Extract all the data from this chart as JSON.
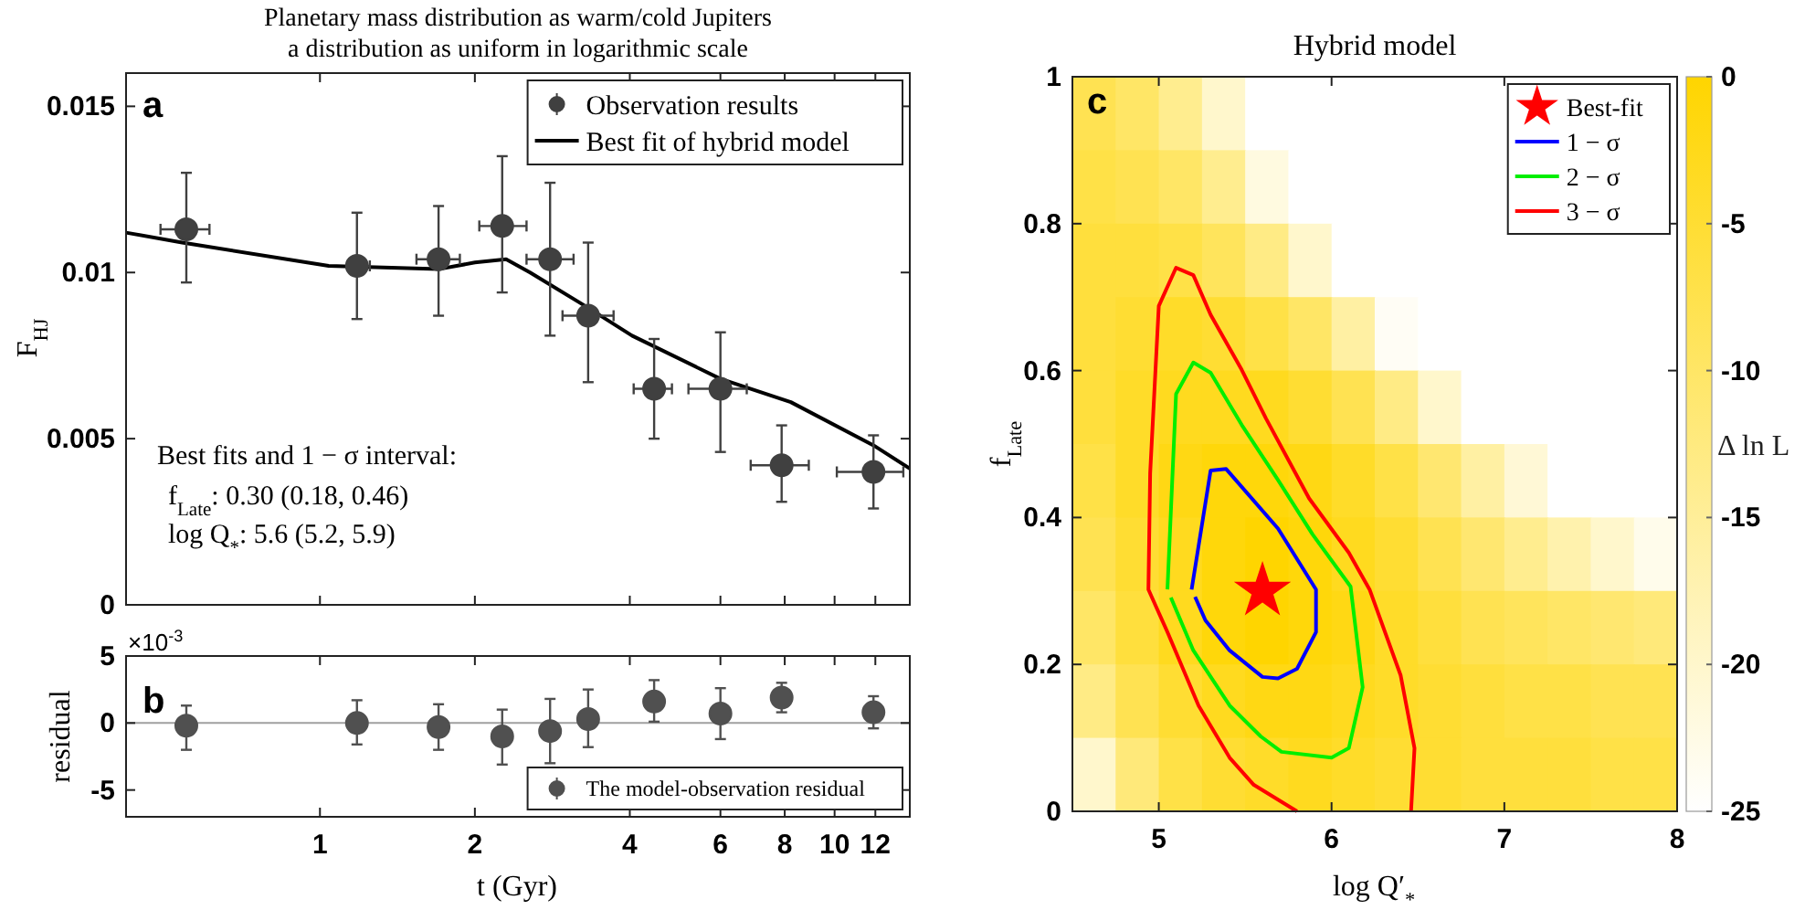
{
  "chart_data": [
    {
      "type": "scatter",
      "title": "Planetary mass distribution as warm/cold Jupiters",
      "subtitle": "a distribution as uniform in logarithmic scale",
      "ylabel": "F$_{HJ}$",
      "log": "x",
      "xlim": [
        0.42,
        14
      ],
      "ylim": [
        0,
        0.016
      ],
      "xticks": [
        1,
        2,
        4,
        6,
        8,
        10,
        12
      ],
      "yticks": [
        0,
        0.005,
        0.01,
        0.015
      ],
      "tick_labels": "y",
      "legend": "top right",
      "annotations": [
        "a",
        "Best fits and 1 − σ interval:",
        "f$_{Late}$: 0.30 (0.18, 0.46)",
        "log Q$_{*}$: 5.6 (5.2, 5.9)"
      ],
      "series": [
        {
          "name": "Observation results",
          "marker": "circle",
          "color": "#404040",
          "x": [
            0.55,
            1.18,
            1.7,
            2.26,
            2.8,
            3.32,
            4.46,
            6.0,
            7.89,
            11.9
          ],
          "values": [
            0.0113,
            0.0102,
            0.0104,
            0.0114,
            0.0104,
            0.0087,
            0.0065,
            0.0065,
            0.0042,
            0.004
          ],
          "errors": [
            [
              0.0097,
              0.013
            ],
            [
              0.0086,
              0.0118
            ],
            [
              0.0087,
              0.012
            ],
            [
              0.0094,
              0.0135
            ],
            [
              0.0081,
              0.0127
            ],
            [
              0.0067,
              0.0109
            ],
            [
              0.005,
              0.008
            ],
            [
              0.0046,
              0.0082
            ],
            [
              0.0031,
              0.0054
            ],
            [
              0.0029,
              0.0051
            ]
          ],
          "xerrors": [
            [
              0.49,
              0.61
            ],
            [
              1.13,
              1.25
            ],
            [
              1.54,
              1.87
            ],
            [
              2.04,
              2.52
            ],
            [
              2.52,
              3.11
            ],
            [
              2.96,
              3.72
            ],
            [
              4.07,
              4.83
            ],
            [
              5.2,
              6.75
            ],
            [
              6.87,
              8.91
            ],
            [
              10.1,
              13.6
            ]
          ]
        },
        {
          "name": "Best fit of hybrid model",
          "type": "line",
          "color": "#000000",
          "x": [
            0.42,
            0.54,
            1.04,
            1.7,
            2.0,
            2.3,
            2.56,
            3.27,
            4.04,
            6.0,
            8.22,
            11.9,
            14
          ],
          "values": [
            0.0112,
            0.0109,
            0.0102,
            0.0101,
            0.0103,
            0.0104,
            0.01,
            0.009,
            0.0081,
            0.0068,
            0.0061,
            0.0048,
            0.0041
          ]
        }
      ]
    },
    {
      "type": "scatter",
      "xlabel": "t (Gyr)",
      "ylabel": "residual",
      "log": "x",
      "xlim": [
        0.42,
        14
      ],
      "ylim": [
        -7,
        5
      ],
      "xticks": [
        1,
        2,
        4,
        6,
        8,
        10,
        12
      ],
      "yticks": [
        5,
        0,
        -5
      ],
      "legend": "bottom right",
      "marker": "circle",
      "ref_lines": [
        {
          "axis": "y",
          "value": 0,
          "color": "#a0a0a0"
        }
      ],
      "annotations": [
        "b",
        "×10$^{-3}$"
      ],
      "series": [
        {
          "name": "The model-observation residual",
          "color": "#505050",
          "x": [
            0.55,
            1.18,
            1.7,
            2.26,
            2.8,
            3.32,
            4.46,
            6.0,
            7.89,
            11.9
          ],
          "values": [
            -0.2,
            0,
            -0.3,
            -1.0,
            -0.6,
            0.3,
            1.6,
            0.7,
            1.9,
            0.8
          ],
          "errors": [
            [
              -2.0,
              1.3
            ],
            [
              -1.6,
              1.7
            ],
            [
              -2.0,
              1.4
            ],
            [
              -3.1,
              1.0
            ],
            [
              -3.0,
              1.8
            ],
            [
              -1.8,
              2.5
            ],
            [
              0.1,
              3.2
            ],
            [
              -1.2,
              2.6
            ],
            [
              0.8,
              3.0
            ],
            [
              -0.4,
              2.0
            ]
          ]
        }
      ]
    },
    {
      "type": "heatmap",
      "clabel": "Δ ln L",
      "clim": [
        -25,
        0
      ],
      "cticks": [
        0,
        -5,
        -10,
        -15,
        -20,
        -25
      ],
      "categories": [
        null,
        null,
        null,
        null,
        null,
        null,
        null,
        null,
        null,
        null,
        null,
        null,
        null,
        null
      ],
      "y_categories": [
        null,
        null,
        null,
        null,
        null,
        null,
        null,
        null,
        null,
        null
      ],
      "cells": [
        [
          -8,
          -10,
          -14,
          -20,
          -25,
          -25,
          -25,
          -25,
          -25,
          -25,
          -25,
          -25,
          -25,
          -25
        ],
        [
          -7,
          -8,
          -10,
          -14,
          -22,
          -25,
          -25,
          -25,
          -25,
          -25,
          -25,
          -25,
          -25,
          -25
        ],
        [
          -6,
          -6,
          -7,
          -9,
          -13,
          -20,
          -25,
          -25,
          -25,
          -25,
          -25,
          -25,
          -25,
          -25
        ],
        [
          -6,
          -5,
          -4,
          -5,
          -7,
          -10,
          -16,
          -24,
          -25,
          -25,
          -25,
          -25,
          -25,
          -25
        ],
        [
          -6,
          -4,
          -3,
          -3,
          -3,
          -5,
          -8,
          -13,
          -20,
          -25,
          -25,
          -25,
          -25,
          -25
        ],
        [
          -7,
          -4,
          -2,
          -1,
          -1,
          -2,
          -4,
          -7,
          -11,
          -16,
          -21,
          -25,
          -25,
          -25
        ],
        [
          -8,
          -5,
          -3,
          -1,
          0,
          -1,
          -3,
          -5,
          -8,
          -11,
          -14,
          -17,
          -20,
          -23
        ],
        [
          -10,
          -6,
          -3,
          -1,
          0,
          -1,
          -2,
          -4,
          -6,
          -8,
          -9,
          -10,
          -11,
          -12
        ],
        [
          -13,
          -8,
          -5,
          -3,
          -2,
          -2,
          -3,
          -4,
          -5,
          -6,
          -7,
          -7,
          -8,
          -8
        ],
        [
          -20,
          -12,
          -7,
          -5,
          -4,
          -3,
          -4,
          -5,
          -5,
          -6,
          -6,
          -6,
          -7,
          -7
        ]
      ]
    },
    {
      "type": "line",
      "title": "Hybrid model",
      "xlabel": "log Q′$_{*}$",
      "ylabel": "f$_{Late}$",
      "xlim": [
        4.5,
        8
      ],
      "ylim": [
        0,
        1
      ],
      "xticks": [
        5,
        6,
        7,
        8
      ],
      "yticks": [
        0,
        0.2,
        0.4,
        0.6,
        0.8,
        1
      ],
      "legend": "top right",
      "annotations": [
        "c"
      ],
      "series": [
        {
          "name": "Best-fit",
          "type": "scatter",
          "marker": "star",
          "color": "#ff0000",
          "x": [
            5.6
          ],
          "values": [
            0.3
          ]
        },
        {
          "name": "1 − σ",
          "type": "line",
          "color": "#0000ff",
          "x": [
            5.19,
            5.3,
            5.39,
            5.69,
            5.91,
            5.91,
            5.8,
            5.69,
            5.6,
            5.41,
            5.27,
            5.21
          ],
          "values": [
            0.302,
            0.464,
            0.466,
            0.385,
            0.302,
            0.244,
            0.194,
            0.181,
            0.183,
            0.219,
            0.26,
            0.292
          ]
        },
        {
          "name": "2 − σ",
          "type": "line",
          "color": "#00ee00",
          "x": [
            5.05,
            5.1,
            5.2,
            5.3,
            5.48,
            5.69,
            5.89,
            6.11,
            6.18,
            6.1,
            6.0,
            5.71,
            5.59,
            5.41,
            5.2,
            5.07
          ],
          "values": [
            0.302,
            0.568,
            0.611,
            0.597,
            0.526,
            0.451,
            0.377,
            0.306,
            0.169,
            0.086,
            0.073,
            0.081,
            0.102,
            0.144,
            0.219,
            0.291
          ]
        },
        {
          "name": "3 − σ",
          "type": "line",
          "color": "#ff0000",
          "x": [
            5.8,
            5.55,
            5.41,
            5.23,
            5.05,
            4.94,
            4.95,
            5.0,
            5.1,
            5.2,
            5.3,
            5.48,
            5.62,
            5.87,
            6.1,
            6.22,
            6.4,
            6.48,
            6.46
          ],
          "values": [
            0,
            0.036,
            0.073,
            0.144,
            0.244,
            0.302,
            0.46,
            0.688,
            0.74,
            0.73,
            0.676,
            0.601,
            0.535,
            0.426,
            0.352,
            0.302,
            0.185,
            0.086,
            0
          ]
        }
      ]
    }
  ]
}
